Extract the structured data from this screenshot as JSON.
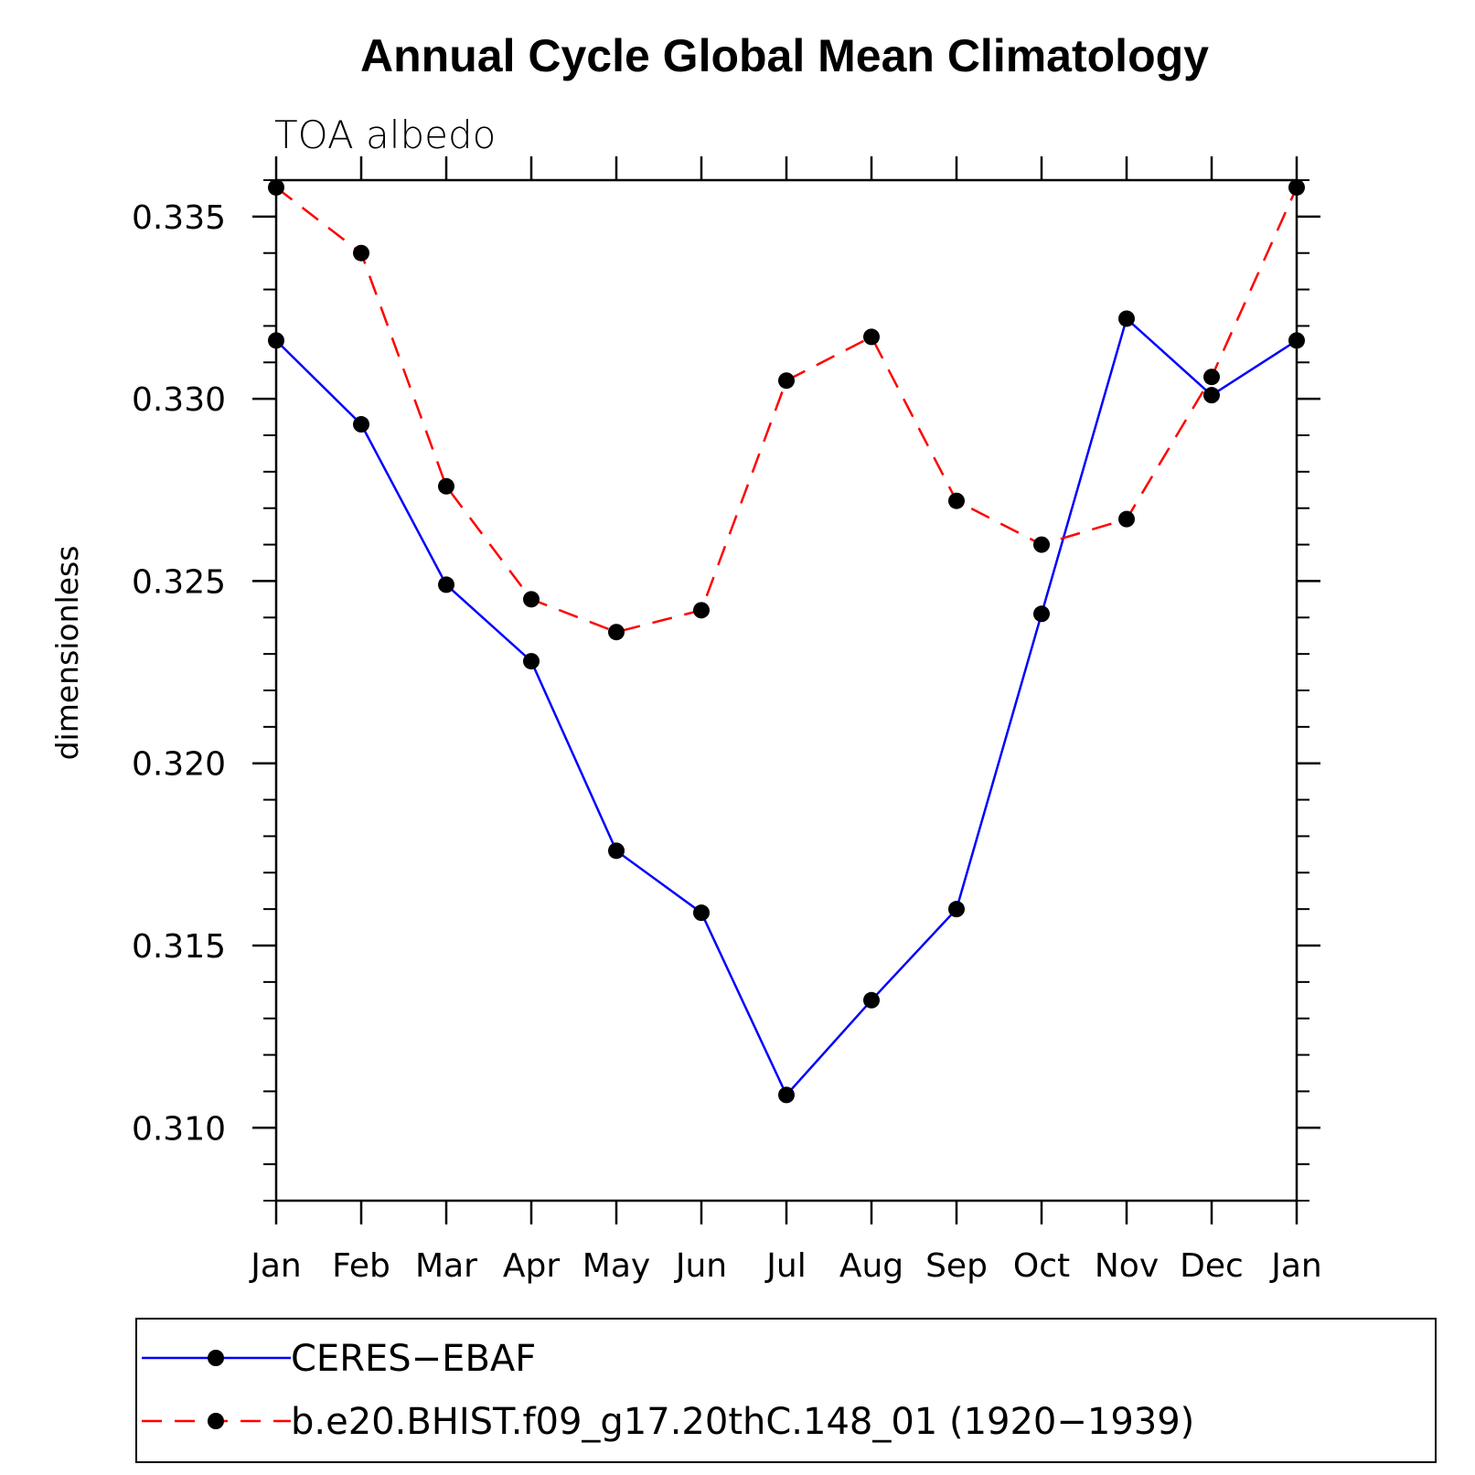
{
  "chart_data": {
    "type": "line",
    "title": "Annual Cycle Global Mean Climatology",
    "subtitle": "TOA albedo",
    "xlabel": "",
    "ylabel": "dimensionless",
    "categories": [
      "Jan",
      "Feb",
      "Mar",
      "Apr",
      "May",
      "Jun",
      "Jul",
      "Aug",
      "Sep",
      "Oct",
      "Nov",
      "Dec",
      "Jan"
    ],
    "ylim": [
      0.308,
      0.336
    ],
    "yticks": [
      0.31,
      0.315,
      0.32,
      0.325,
      0.33,
      0.335
    ],
    "ytick_labels": [
      "0.310",
      "0.315",
      "0.320",
      "0.325",
      "0.330",
      "0.335"
    ],
    "grid": false,
    "legend_position": "bottom",
    "series": [
      {
        "name": "CERES-EBAF",
        "color": "#0000ff",
        "style": "solid",
        "values": [
          0.3316,
          0.3293,
          0.3249,
          0.3228,
          0.3176,
          0.3159,
          0.3109,
          0.3135,
          0.316,
          0.3241,
          0.3322,
          0.3301,
          0.3316
        ]
      },
      {
        "name": "b.e20.BHIST.f09_g17.20thC.148_01 (1920-1939)",
        "color": "#ff0000",
        "style": "dashed",
        "values": [
          0.3358,
          0.334,
          0.3276,
          0.3245,
          0.3236,
          0.3242,
          0.3305,
          0.3317,
          0.3272,
          0.326,
          0.3267,
          0.3306,
          0.3358
        ]
      }
    ],
    "legend": {
      "entries": [
        "CERES−EBAF",
        "b.e20.BHIST.f09_g17.20thC.148_01 (1920−1939)"
      ]
    }
  }
}
